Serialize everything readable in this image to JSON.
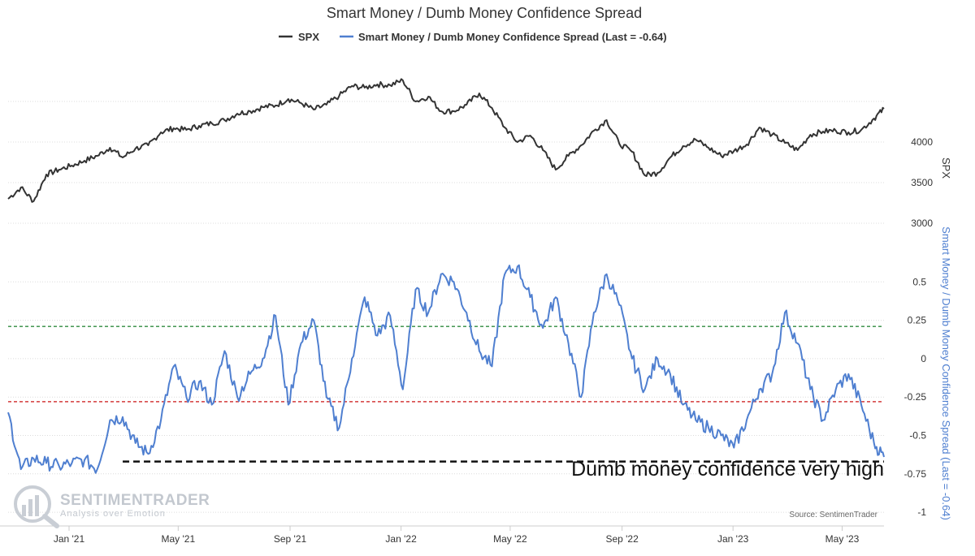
{
  "chart_data": {
    "type": "line",
    "title": "Smart Money / Dumb Money Confidence Spread",
    "legend": {
      "placement": "top-center",
      "items": [
        {
          "name": "SPX",
          "color": "#333333"
        },
        {
          "name": "Smart Money / Dumb Money Confidence Spread (Last = -0.64)",
          "color": "#4f7fd0"
        }
      ]
    },
    "x_tick_labels": [
      "Jan '21",
      "May '21",
      "Sep '21",
      "Jan '22",
      "May '22",
      "Sep '22",
      "Jan '23",
      "May '23"
    ],
    "x_tick_dates": [
      "2021-01-01",
      "2021-05-01",
      "2021-09-01",
      "2022-01-01",
      "2022-05-01",
      "2022-09-01",
      "2023-01-01",
      "2023-05-01"
    ],
    "x_range": [
      "2020-10-26",
      "2023-06-16"
    ],
    "spx_axis": {
      "label": "SPX",
      "ticks": [
        3000,
        3500,
        4000
      ],
      "range": [
        2750,
        4750
      ]
    },
    "spread_axis": {
      "label": "Smart Money / Dumb Money Confidence Spread (Last = -0.64)",
      "ticks": [
        -1,
        -0.75,
        -0.5,
        -0.25,
        0,
        0.25,
        0.5
      ],
      "tick_labels": [
        "-1",
        "-0.75",
        "-0.5",
        "-0.25",
        "0",
        "0.25",
        "0.5"
      ],
      "range": [
        -1.1,
        0.75
      ]
    },
    "grid": true,
    "series": [
      {
        "name": "SPX",
        "color": "#333333",
        "x": [
          "2020-10-26",
          "2020-11-09",
          "2020-11-23",
          "2020-12-07",
          "2020-12-21",
          "2021-01-04",
          "2021-01-18",
          "2021-02-01",
          "2021-02-15",
          "2021-03-01",
          "2021-03-15",
          "2021-03-29",
          "2021-04-12",
          "2021-04-26",
          "2021-05-10",
          "2021-05-24",
          "2021-06-07",
          "2021-06-21",
          "2021-07-05",
          "2021-07-19",
          "2021-08-02",
          "2021-08-16",
          "2021-08-30",
          "2021-09-13",
          "2021-09-27",
          "2021-10-11",
          "2021-10-25",
          "2021-11-08",
          "2021-11-22",
          "2021-12-06",
          "2021-12-20",
          "2022-01-03",
          "2022-01-17",
          "2022-01-31",
          "2022-02-14",
          "2022-02-28",
          "2022-03-14",
          "2022-03-28",
          "2022-04-11",
          "2022-04-25",
          "2022-05-09",
          "2022-05-23",
          "2022-06-06",
          "2022-06-20",
          "2022-07-04",
          "2022-07-18",
          "2022-08-01",
          "2022-08-15",
          "2022-08-29",
          "2022-09-12",
          "2022-09-26",
          "2022-10-10",
          "2022-10-24",
          "2022-11-07",
          "2022-11-21",
          "2022-12-05",
          "2022-12-19",
          "2023-01-02",
          "2023-01-16",
          "2023-01-30",
          "2023-02-13",
          "2023-02-27",
          "2023-03-13",
          "2023-03-27",
          "2023-04-10",
          "2023-04-24",
          "2023-05-08",
          "2023-05-22",
          "2023-06-05",
          "2023-06-16"
        ],
        "values": [
          3300,
          3440,
          3270,
          3600,
          3660,
          3710,
          3770,
          3830,
          3930,
          3810,
          3920,
          3960,
          4120,
          4170,
          4150,
          4200,
          4230,
          4270,
          4350,
          4380,
          4430,
          4450,
          4530,
          4480,
          4400,
          4460,
          4570,
          4690,
          4670,
          4710,
          4700,
          4760,
          4500,
          4560,
          4380,
          4380,
          4460,
          4600,
          4420,
          4180,
          4000,
          4080,
          3900,
          3660,
          3830,
          3960,
          4140,
          4270,
          3980,
          3880,
          3590,
          3620,
          3810,
          3950,
          4030,
          3930,
          3830,
          3890,
          3970,
          4180,
          4090,
          3990,
          3900,
          4090,
          4130,
          4140,
          4120,
          4150,
          4290,
          4410
        ]
      },
      {
        "name": "Smart Money / Dumb Money Confidence Spread (Last = -0.64)",
        "color": "#4f7fd0",
        "x": [
          "2020-10-26",
          "2020-11-09",
          "2020-11-23",
          "2020-12-07",
          "2020-12-21",
          "2021-01-04",
          "2021-01-18",
          "2021-02-01",
          "2021-02-15",
          "2021-03-01",
          "2021-03-15",
          "2021-03-29",
          "2021-04-12",
          "2021-04-26",
          "2021-05-10",
          "2021-05-24",
          "2021-06-07",
          "2021-06-21",
          "2021-07-05",
          "2021-07-19",
          "2021-08-02",
          "2021-08-16",
          "2021-08-30",
          "2021-09-13",
          "2021-09-27",
          "2021-10-11",
          "2021-10-25",
          "2021-11-08",
          "2021-11-22",
          "2021-12-06",
          "2021-12-20",
          "2022-01-03",
          "2022-01-17",
          "2022-01-31",
          "2022-02-14",
          "2022-02-28",
          "2022-03-14",
          "2022-03-28",
          "2022-04-11",
          "2022-04-25",
          "2022-05-09",
          "2022-05-23",
          "2022-06-06",
          "2022-06-20",
          "2022-07-04",
          "2022-07-18",
          "2022-08-01",
          "2022-08-15",
          "2022-08-29",
          "2022-09-12",
          "2022-09-26",
          "2022-10-10",
          "2022-10-24",
          "2022-11-07",
          "2022-11-21",
          "2022-12-05",
          "2022-12-19",
          "2023-01-02",
          "2023-01-16",
          "2023-01-30",
          "2023-02-13",
          "2023-02-27",
          "2023-03-13",
          "2023-03-27",
          "2023-04-10",
          "2023-04-24",
          "2023-05-08",
          "2023-05-22",
          "2023-06-05",
          "2023-06-16"
        ],
        "values": [
          -0.35,
          -0.72,
          -0.65,
          -0.68,
          -0.7,
          -0.68,
          -0.66,
          -0.72,
          -0.4,
          -0.38,
          -0.55,
          -0.62,
          -0.4,
          -0.05,
          -0.25,
          -0.15,
          -0.3,
          0.05,
          -0.25,
          -0.1,
          0.0,
          0.28,
          -0.3,
          0.1,
          0.25,
          -0.25,
          -0.45,
          0.0,
          0.4,
          0.15,
          0.28,
          -0.2,
          0.45,
          0.3,
          0.55,
          0.5,
          0.3,
          0.05,
          -0.05,
          0.55,
          0.6,
          0.4,
          0.2,
          0.4,
          0.1,
          -0.25,
          0.3,
          0.55,
          0.35,
          0.0,
          -0.2,
          0.0,
          -0.1,
          -0.3,
          -0.4,
          -0.45,
          -0.5,
          -0.58,
          -0.4,
          -0.2,
          -0.1,
          0.3,
          0.1,
          -0.2,
          -0.4,
          -0.2,
          -0.1,
          -0.3,
          -0.55,
          -0.64
        ]
      }
    ],
    "reference_lines": [
      {
        "axis": "spread",
        "value": 0.21,
        "color": "#2e8b3e"
      },
      {
        "axis": "spread",
        "value": -0.28,
        "color": "#d43a3a"
      },
      {
        "axis": "spread",
        "value": -0.67,
        "color": "#111111",
        "from": "2021-03-01"
      }
    ],
    "annotation": "Dumb money confidence very high",
    "source": "Source: SentimenTrader"
  },
  "watermark": {
    "brand": "SENTIMENTRADER",
    "tagline": "Analysis over Emotion"
  }
}
